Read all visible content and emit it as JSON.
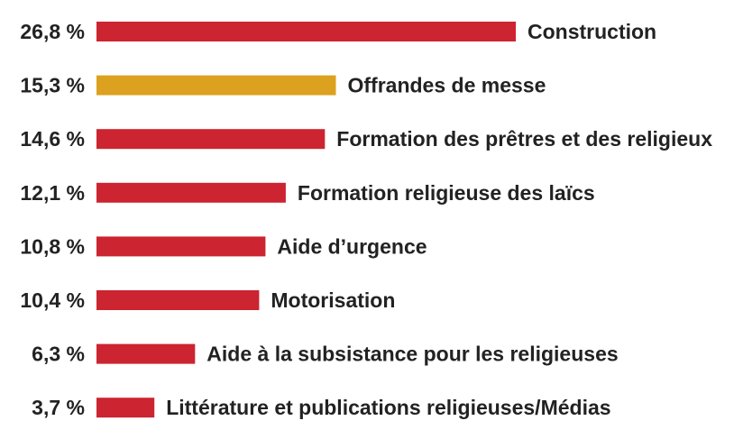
{
  "chart_data": {
    "type": "bar",
    "orientation": "horizontal",
    "title": "",
    "xlabel": "",
    "ylabel": "",
    "xlim": [
      0,
      26.8
    ],
    "grid": false,
    "legend": "none",
    "categories": [
      "Construction",
      "Offrandes de messe",
      "Formation des prêtres et des religieux",
      "Formation religieuse des laïcs",
      "Aide d’urgence",
      "Motorisation",
      "Aide à la subsistance pour les religieuses",
      "Littérature et publications religieuses/Médias"
    ],
    "values": [
      26.8,
      15.3,
      14.6,
      12.1,
      10.8,
      10.4,
      6.3,
      3.7
    ],
    "value_labels": [
      "26,8 %",
      "15,3 %",
      "14,6 %",
      "12,1 %",
      "10,8 %",
      "10,4 %",
      "6,3 %",
      "3,7 %"
    ],
    "bar_colors": [
      "#cc2430",
      "#dca21f",
      "#cc2430",
      "#cc2430",
      "#cc2430",
      "#cc2430",
      "#cc2430",
      "#cc2430"
    ],
    "colors": {
      "primary": "#cc2430",
      "highlight": "#dca21f",
      "text": "#222222"
    }
  }
}
